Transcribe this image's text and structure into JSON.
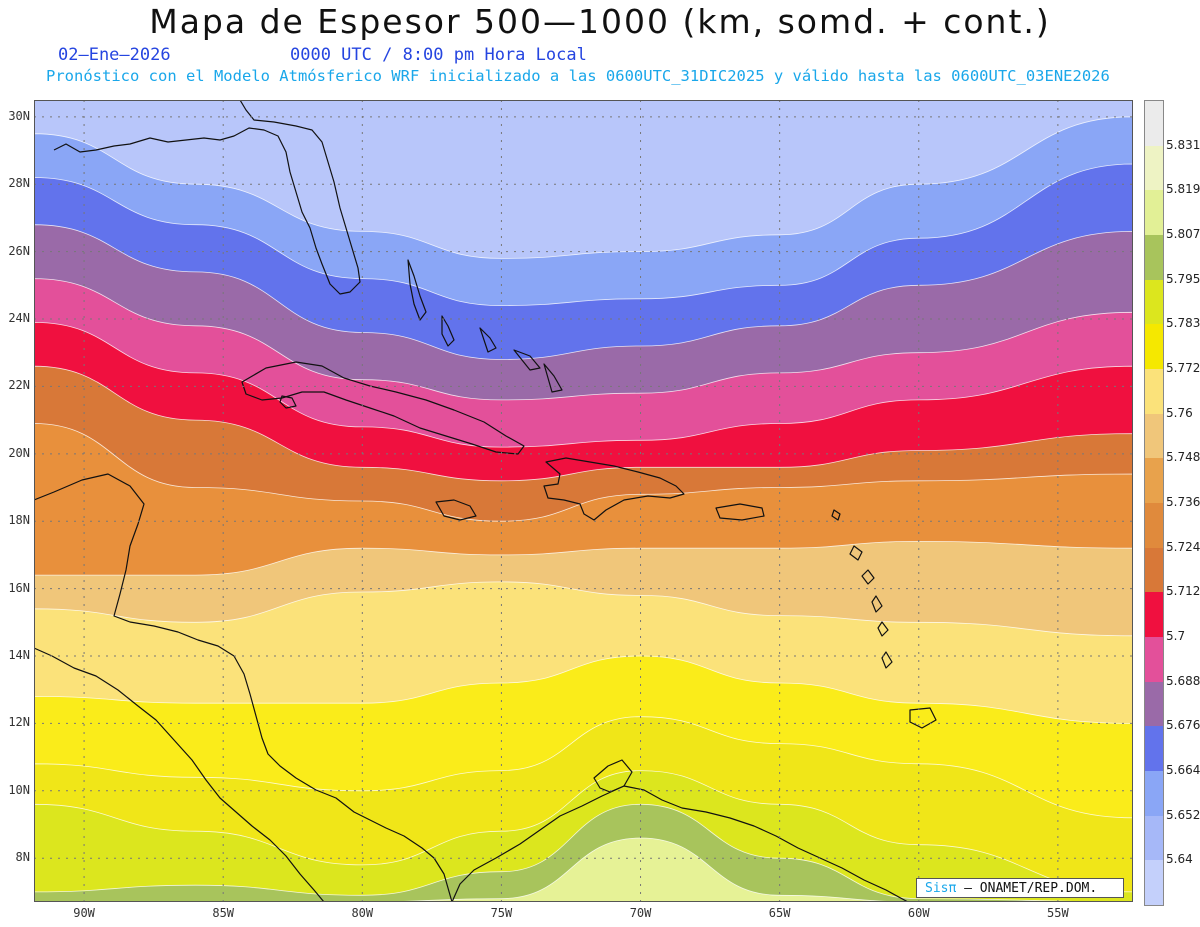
{
  "header": {
    "title": "Mapa de Espesor 500—1000 (km, somd. + cont.)",
    "date": "02—Ene—2026",
    "time": "0000 UTC / 8:00 pm Hora Local",
    "forecast": "Pronóstico con el Modelo Atmósferico WRF inicializado a las 0600UTC_31DIC2025 y válido hasta las  0600UTC_03ENE2026"
  },
  "map": {
    "lat_range": [
      6.7,
      30.5
    ],
    "lon_range": [
      -91.8,
      -52.3
    ],
    "lat_ticks": [
      {
        "value": 8,
        "label": "8N"
      },
      {
        "value": 10,
        "label": "10N"
      },
      {
        "value": 12,
        "label": "12N"
      },
      {
        "value": 14,
        "label": "14N"
      },
      {
        "value": 16,
        "label": "16N"
      },
      {
        "value": 18,
        "label": "18N"
      },
      {
        "value": 20,
        "label": "20N"
      },
      {
        "value": 22,
        "label": "22N"
      },
      {
        "value": 24,
        "label": "24N"
      },
      {
        "value": 26,
        "label": "26N"
      },
      {
        "value": 28,
        "label": "28N"
      },
      {
        "value": 30,
        "label": "30N"
      }
    ],
    "lon_ticks": [
      {
        "value": -90,
        "label": "90W"
      },
      {
        "value": -85,
        "label": "85W"
      },
      {
        "value": -80,
        "label": "80W"
      },
      {
        "value": -75,
        "label": "75W"
      },
      {
        "value": -70,
        "label": "70W"
      },
      {
        "value": -65,
        "label": "65W"
      },
      {
        "value": -60,
        "label": "60W"
      },
      {
        "value": -55,
        "label": "55W"
      }
    ],
    "grid": true,
    "thickness_bands": [
      {
        "min": 5.636,
        "color": "#b8c6fa"
      },
      {
        "min": 5.652,
        "color": "#8aa6f6"
      },
      {
        "min": 5.664,
        "color": "#6273ec"
      },
      {
        "min": 5.676,
        "color": "#9a6aa8"
      },
      {
        "min": 5.688,
        "color": "#e3509a"
      },
      {
        "min": 5.7,
        "color": "#f0103f"
      },
      {
        "min": 5.712,
        "color": "#d87838"
      },
      {
        "min": 5.724,
        "color": "#e8903c"
      },
      {
        "min": 5.736,
        "color": "#f0c67a"
      },
      {
        "min": 5.748,
        "color": "#fbe27a"
      },
      {
        "min": 5.76,
        "color": "#faec1a"
      },
      {
        "min": 5.772,
        "color": "#f0e618"
      },
      {
        "min": 5.783,
        "color": "#dce61e"
      },
      {
        "min": 5.795,
        "color": "#a8c45c"
      },
      {
        "min": 5.807,
        "color": "#e6f296"
      }
    ]
  },
  "colorbar": {
    "segments": [
      {
        "color": "#ebebeb"
      },
      {
        "color": "#eef3c4"
      },
      {
        "color": "#e2f096"
      },
      {
        "color": "#a8c45c"
      },
      {
        "color": "#dce61e"
      },
      {
        "color": "#f5e800"
      },
      {
        "color": "#fbe27a"
      },
      {
        "color": "#f0c67a"
      },
      {
        "color": "#e8a24c"
      },
      {
        "color": "#e08a3c"
      },
      {
        "color": "#d87838"
      },
      {
        "color": "#f0103f"
      },
      {
        "color": "#e3509a"
      },
      {
        "color": "#9a6aa8"
      },
      {
        "color": "#6273ec"
      },
      {
        "color": "#8aa6f6"
      },
      {
        "color": "#a6b8f8"
      },
      {
        "color": "#c4d0fb"
      }
    ],
    "labels": [
      "5.831",
      "5.819",
      "5.807",
      "5.795",
      "5.783",
      "5.772",
      "5.76",
      "5.748",
      "5.736",
      "5.724",
      "5.712",
      "5.7",
      "5.688",
      "5.676",
      "5.664",
      "5.652",
      "5.64"
    ]
  },
  "credit": {
    "logo": "Sisπ",
    "text": " — ONAMET/REP.DOM."
  }
}
